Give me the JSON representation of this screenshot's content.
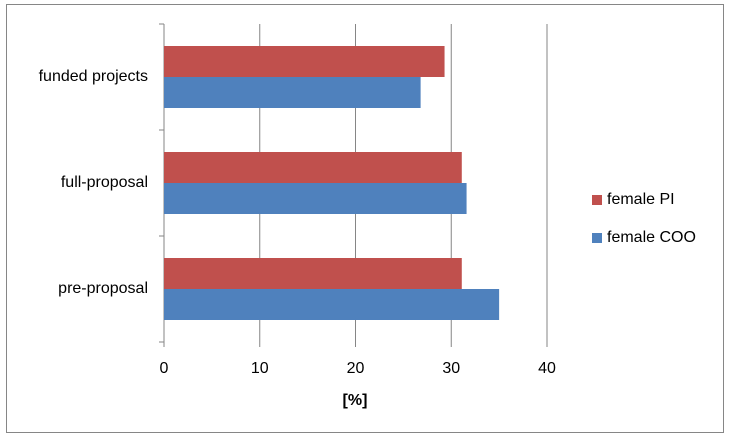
{
  "chart_data": {
    "type": "hbar",
    "x_label": "[%]",
    "categories": [
      "pre-proposal",
      "full-proposal",
      "funded projects"
    ],
    "series": [
      {
        "name": "female PI",
        "color": "#c0504d",
        "values": [
          31.1,
          31.1,
          29.3
        ]
      },
      {
        "name": "female COO",
        "color": "#4f81bd",
        "values": [
          35.0,
          31.6,
          26.8
        ]
      }
    ],
    "xlim": [
      0,
      40
    ],
    "xticks": [
      0,
      10,
      20,
      30,
      40
    ],
    "grid": true,
    "legend": "right"
  }
}
